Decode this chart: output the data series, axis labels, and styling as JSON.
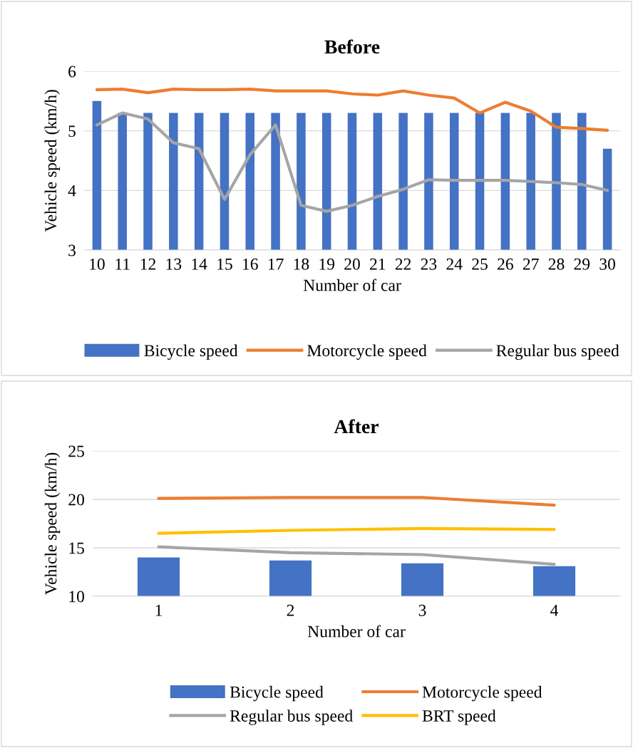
{
  "chart_data": [
    {
      "type": "bar",
      "title": "Before",
      "xlabel": "Number of car",
      "ylabel": "Vehicle speed (km/h)",
      "categories": [
        "10",
        "11",
        "12",
        "13",
        "14",
        "15",
        "16",
        "17",
        "18",
        "19",
        "20",
        "21",
        "22",
        "23",
        "24",
        "25",
        "26",
        "27",
        "28",
        "29",
        "30"
      ],
      "series": [
        {
          "name": "Bicycle speed",
          "color": "#4472c4",
          "values": [
            5.5,
            5.3,
            5.3,
            5.3,
            5.3,
            5.3,
            5.3,
            5.3,
            5.3,
            5.3,
            5.3,
            5.3,
            5.3,
            5.3,
            5.3,
            5.3,
            5.3,
            5.3,
            5.3,
            5.3,
            4.7
          ]
        },
        {
          "name": "Motorcycle speed",
          "type": "line",
          "color": "#ed7d31",
          "values": [
            5.69,
            5.7,
            5.64,
            5.7,
            5.69,
            5.69,
            5.7,
            5.67,
            5.67,
            5.67,
            5.62,
            5.6,
            5.67,
            5.6,
            5.55,
            5.3,
            5.48,
            5.33,
            5.06,
            5.04,
            5.01
          ]
        },
        {
          "name": "Regular bus speed",
          "type": "line",
          "color": "#a5a5a5",
          "values": [
            5.1,
            5.3,
            5.2,
            4.8,
            4.7,
            3.85,
            4.6,
            5.1,
            3.75,
            3.65,
            3.75,
            3.9,
            4.02,
            4.18,
            4.17,
            4.17,
            4.17,
            4.15,
            4.13,
            4.1,
            4.0
          ]
        }
      ],
      "ylim": [
        3,
        6
      ],
      "yticks": [
        3,
        4,
        5,
        6
      ],
      "grid": "y",
      "legend": "bottom",
      "marker": "none",
      "line_style": "solid"
    },
    {
      "type": "bar",
      "title": "After",
      "xlabel": "Number of car",
      "ylabel": "Vehicle speed (km/h)",
      "categories": [
        "1",
        "2",
        "3",
        "4"
      ],
      "series": [
        {
          "name": "Bicycle speed",
          "color": "#4472c4",
          "values": [
            14.0,
            13.7,
            13.4,
            13.1
          ]
        },
        {
          "name": "Motorcycle speed",
          "type": "line",
          "color": "#ed7d31",
          "values": [
            20.1,
            20.2,
            20.2,
            19.4
          ]
        },
        {
          "name": "Regular bus speed",
          "type": "line",
          "color": "#a5a5a5",
          "values": [
            15.1,
            14.5,
            14.3,
            13.3
          ]
        },
        {
          "name": "BRT speed",
          "type": "line",
          "color": "#ffc000",
          "values": [
            16.5,
            16.8,
            17.0,
            16.9
          ]
        }
      ],
      "ylim": [
        10,
        25
      ],
      "yticks": [
        10,
        15,
        20,
        25
      ],
      "grid": "y",
      "legend": "bottom",
      "marker": "none",
      "line_style": "solid"
    }
  ]
}
